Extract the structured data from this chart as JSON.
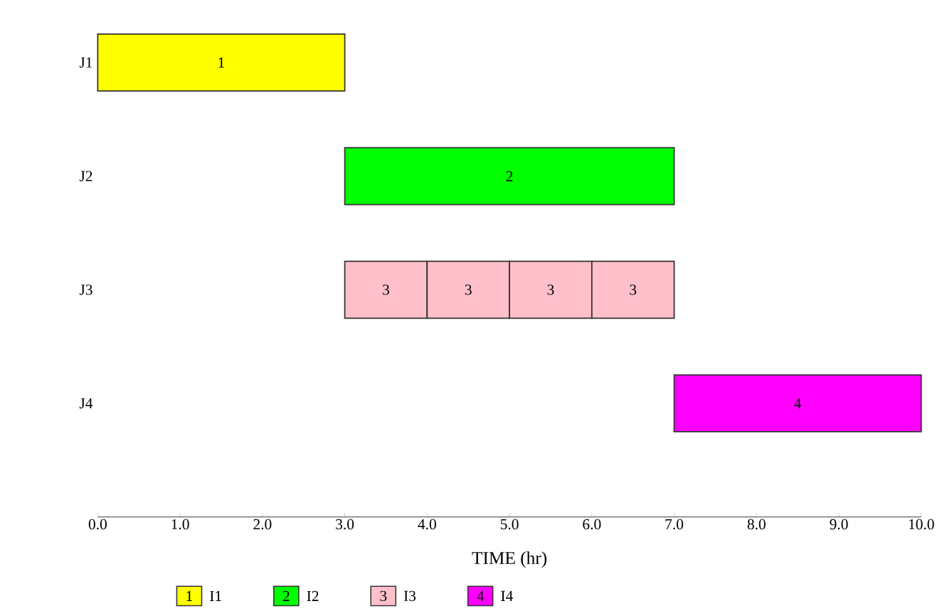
{
  "chart_data": {
    "type": "bar",
    "orientation": "horizontal",
    "xlabel": "TIME (hr)",
    "categories": [
      "J1",
      "J2",
      "J3",
      "J4"
    ],
    "xlim": [
      0,
      10
    ],
    "xticks": [
      {
        "value": 0,
        "label": "0.0"
      },
      {
        "value": 1,
        "label": "1.0"
      },
      {
        "value": 2,
        "label": "2.0"
      },
      {
        "value": 3,
        "label": "3.0"
      },
      {
        "value": 4,
        "label": "4.0"
      },
      {
        "value": 5,
        "label": "5.0"
      },
      {
        "value": 6,
        "label": "6.0"
      },
      {
        "value": 7,
        "label": "7.0"
      },
      {
        "value": 8,
        "label": "8.0"
      },
      {
        "value": 9,
        "label": "9.0"
      },
      {
        "value": 10,
        "label": "10.0"
      }
    ],
    "legend": "bottom",
    "annotations": [
      "1",
      "2",
      "3",
      "3",
      "3",
      "3",
      "4",
      "1",
      "2",
      "3",
      "4"
    ],
    "series": [
      {
        "name": "I1",
        "color": "#ffff00",
        "values": [
          3,
          null,
          null,
          null
        ],
        "base": [
          0,
          null,
          null,
          null
        ]
      },
      {
        "name": "I2",
        "color": "#00ff00",
        "values": [
          null,
          4,
          null,
          null
        ],
        "base": [
          null,
          3,
          null,
          null
        ]
      },
      {
        "name": "I3",
        "color": "#ffc0cb",
        "values": [
          null,
          null,
          1,
          null
        ],
        "base": [
          null,
          null,
          3,
          null
        ]
      },
      {
        "color": "#ffc0cb",
        "values": [
          null,
          null,
          1,
          null
        ],
        "base": [
          null,
          null,
          4,
          null
        ]
      },
      {
        "color": "#ffc0cb",
        "values": [
          null,
          null,
          1,
          null
        ],
        "base": [
          null,
          null,
          5,
          null
        ]
      },
      {
        "color": "#ffc0cb",
        "values": [
          null,
          null,
          1,
          null
        ],
        "base": [
          null,
          null,
          6,
          null
        ]
      },
      {
        "name": "I4",
        "color": "#ff00ff",
        "values": [
          null,
          null,
          null,
          3
        ],
        "base": [
          null,
          null,
          null,
          7
        ]
      }
    ]
  }
}
